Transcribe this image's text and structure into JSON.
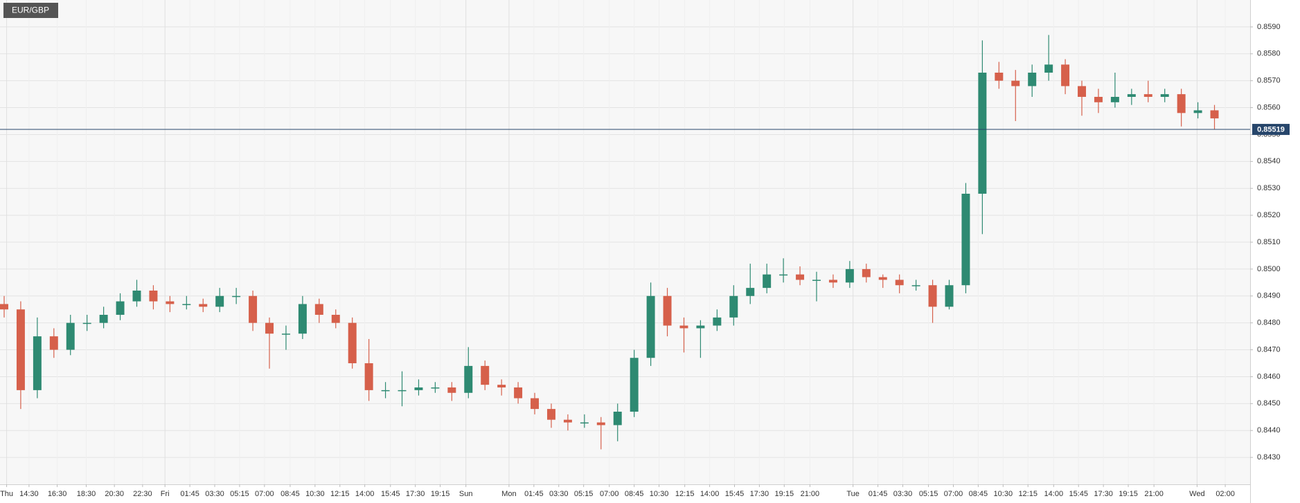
{
  "chart_data": {
    "type": "candlestick",
    "title": "EUR/GBP",
    "open": [
      0.8487,
      0.8485,
      0.8455,
      0.8475,
      0.847,
      0.848,
      0.848,
      0.8483,
      0.8488,
      0.8492,
      0.8488,
      0.8487,
      0.8487,
      0.8486,
      0.849,
      0.849,
      0.848,
      0.8476,
      0.8476,
      0.8487,
      0.8483,
      0.848,
      0.8465,
      0.8455,
      0.8455,
      0.8455,
      0.8456,
      0.8456,
      0.8454,
      0.8464,
      0.8457,
      0.8456,
      0.8452,
      0.8448,
      0.8444,
      0.8443,
      0.8443,
      0.8442,
      0.8447,
      0.8467,
      0.849,
      0.8479,
      0.8478,
      0.8479,
      0.8482,
      0.849,
      0.8493,
      0.8498,
      0.8498,
      0.8496,
      0.8496,
      0.8495,
      0.85,
      0.8497,
      0.8496,
      0.8494,
      0.8494,
      0.8486,
      0.8494,
      0.8528,
      0.8573,
      0.857,
      0.8568,
      0.8573,
      0.8576,
      0.8568,
      0.8564,
      0.8562,
      0.8564,
      0.8565,
      0.8564,
      0.8565,
      0.8558,
      0.8559
    ],
    "high": [
      0.849,
      0.8488,
      0.8482,
      0.8478,
      0.8483,
      0.8483,
      0.8486,
      0.8491,
      0.8496,
      0.8494,
      0.849,
      0.849,
      0.8489,
      0.8493,
      0.8493,
      0.8492,
      0.8482,
      0.8479,
      0.849,
      0.8489,
      0.8485,
      0.8482,
      0.8474,
      0.8458,
      0.8462,
      0.8459,
      0.8458,
      0.8458,
      0.8471,
      0.8466,
      0.8459,
      0.8458,
      0.8454,
      0.845,
      0.8446,
      0.8446,
      0.8445,
      0.845,
      0.847,
      0.8495,
      0.8493,
      0.8482,
      0.8481,
      0.8485,
      0.8494,
      0.8502,
      0.8502,
      0.8504,
      0.8501,
      0.8499,
      0.8498,
      0.8503,
      0.8502,
      0.8498,
      0.8498,
      0.8496,
      0.8496,
      0.8496,
      0.8532,
      0.8585,
      0.8577,
      0.8574,
      0.8576,
      0.8587,
      0.8578,
      0.857,
      0.8567,
      0.8573,
      0.8567,
      0.857,
      0.8567,
      0.8567,
      0.8562,
      0.8561
    ],
    "low": [
      0.8482,
      0.8448,
      0.8452,
      0.8467,
      0.8468,
      0.8477,
      0.8478,
      0.8481,
      0.8486,
      0.8485,
      0.8484,
      0.8485,
      0.8484,
      0.8484,
      0.8487,
      0.8477,
      0.8463,
      0.847,
      0.8474,
      0.848,
      0.8478,
      0.8463,
      0.8451,
      0.8452,
      0.8449,
      0.8453,
      0.8454,
      0.8451,
      0.8452,
      0.8455,
      0.8453,
      0.845,
      0.8446,
      0.8441,
      0.844,
      0.8441,
      0.8433,
      0.8436,
      0.8445,
      0.8464,
      0.8475,
      0.8469,
      0.8467,
      0.8477,
      0.8479,
      0.8487,
      0.8491,
      0.8495,
      0.8494,
      0.8488,
      0.8493,
      0.8493,
      0.8495,
      0.8493,
      0.8491,
      0.8492,
      0.848,
      0.8485,
      0.8491,
      0.8513,
      0.8567,
      0.8555,
      0.8564,
      0.857,
      0.8565,
      0.8557,
      0.8558,
      0.856,
      0.8561,
      0.8562,
      0.8562,
      0.8553,
      0.8556,
      0.8552
    ],
    "close": [
      0.8485,
      0.8455,
      0.8475,
      0.847,
      0.848,
      0.848,
      0.8483,
      0.8488,
      0.8492,
      0.8488,
      0.8487,
      0.8487,
      0.8486,
      0.849,
      0.849,
      0.848,
      0.8476,
      0.8476,
      0.8487,
      0.8483,
      0.848,
      0.8465,
      0.8455,
      0.8455,
      0.8455,
      0.8456,
      0.8456,
      0.8454,
      0.8464,
      0.8457,
      0.8456,
      0.8452,
      0.8448,
      0.8444,
      0.8443,
      0.8443,
      0.8442,
      0.8447,
      0.8467,
      0.849,
      0.8479,
      0.8478,
      0.8479,
      0.8482,
      0.849,
      0.8493,
      0.8498,
      0.8498,
      0.8496,
      0.8496,
      0.8495,
      0.85,
      0.8497,
      0.8496,
      0.8494,
      0.8494,
      0.8486,
      0.8494,
      0.8528,
      0.8573,
      0.857,
      0.8568,
      0.8573,
      0.8576,
      0.8568,
      0.8564,
      0.8562,
      0.8564,
      0.8565,
      0.8564,
      0.8565,
      0.8558,
      0.8559,
      0.8556
    ],
    "up_color": "#2e8a72",
    "down_color": "#d6604b",
    "last_price": 0.85519,
    "last_price_color": "#27466b",
    "ylim": [
      0.842,
      0.86
    ],
    "yticks": [
      {
        "value": 0.843,
        "label": "0.8430"
      },
      {
        "value": 0.844,
        "label": "0.8440"
      },
      {
        "value": 0.845,
        "label": "0.8450"
      },
      {
        "value": 0.846,
        "label": "0.8460"
      },
      {
        "value": 0.847,
        "label": "0.8470"
      },
      {
        "value": 0.848,
        "label": "0.8480"
      },
      {
        "value": 0.849,
        "label": "0.8490"
      },
      {
        "value": 0.85,
        "label": "0.8500"
      },
      {
        "value": 0.851,
        "label": "0.8510"
      },
      {
        "value": 0.852,
        "label": "0.8520"
      },
      {
        "value": 0.853,
        "label": "0.8530"
      },
      {
        "value": 0.854,
        "label": "0.8540"
      },
      {
        "value": 0.855,
        "label": "0.8550"
      },
      {
        "value": 0.856,
        "label": "0.8560"
      },
      {
        "value": 0.857,
        "label": "0.8570"
      },
      {
        "value": 0.858,
        "label": "0.8580"
      },
      {
        "value": 0.859,
        "label": "0.8590"
      }
    ],
    "xlim": [
      -0.25,
      75.15
    ],
    "xticks": [
      {
        "value": 0.15,
        "label": "Thu"
      },
      {
        "value": 1.5,
        "label": "14:30"
      },
      {
        "value": 3.2,
        "label": "16:30"
      },
      {
        "value": 4.95,
        "label": "18:30"
      },
      {
        "value": 6.65,
        "label": "20:30"
      },
      {
        "value": 8.35,
        "label": "22:30"
      },
      {
        "value": 9.7,
        "label": "Fri"
      },
      {
        "value": 11.2,
        "label": "01:45"
      },
      {
        "value": 12.7,
        "label": "03:30"
      },
      {
        "value": 14.2,
        "label": "05:15"
      },
      {
        "value": 15.7,
        "label": "07:00"
      },
      {
        "value": 17.25,
        "label": "08:45"
      },
      {
        "value": 18.75,
        "label": "10:30"
      },
      {
        "value": 20.25,
        "label": "12:15"
      },
      {
        "value": 21.75,
        "label": "14:00"
      },
      {
        "value": 23.3,
        "label": "15:45"
      },
      {
        "value": 24.8,
        "label": "17:30"
      },
      {
        "value": 26.3,
        "label": "19:15"
      },
      {
        "value": 27.85,
        "label": "Sun"
      },
      {
        "value": 30.45,
        "label": "Mon"
      },
      {
        "value": 31.95,
        "label": "01:45"
      },
      {
        "value": 33.45,
        "label": "03:30"
      },
      {
        "value": 34.95,
        "label": "05:15"
      },
      {
        "value": 36.5,
        "label": "07:00"
      },
      {
        "value": 38,
        "label": "08:45"
      },
      {
        "value": 39.5,
        "label": "10:30"
      },
      {
        "value": 41.05,
        "label": "12:15"
      },
      {
        "value": 42.55,
        "label": "14:00"
      },
      {
        "value": 44.05,
        "label": "15:45"
      },
      {
        "value": 45.55,
        "label": "17:30"
      },
      {
        "value": 47.05,
        "label": "19:15"
      },
      {
        "value": 48.6,
        "label": "21:00"
      },
      {
        "value": 51.2,
        "label": "Tue"
      },
      {
        "value": 52.7,
        "label": "01:45"
      },
      {
        "value": 54.2,
        "label": "03:30"
      },
      {
        "value": 55.75,
        "label": "05:15"
      },
      {
        "value": 57.25,
        "label": "07:00"
      },
      {
        "value": 58.75,
        "label": "08:45"
      },
      {
        "value": 60.25,
        "label": "10:30"
      },
      {
        "value": 61.75,
        "label": "12:15"
      },
      {
        "value": 63.3,
        "label": "14:00"
      },
      {
        "value": 64.8,
        "label": "15:45"
      },
      {
        "value": 66.3,
        "label": "17:30"
      },
      {
        "value": 67.8,
        "label": "19:15"
      },
      {
        "value": 69.35,
        "label": "21:00"
      },
      {
        "value": 71.95,
        "label": "Wed"
      },
      {
        "value": 73.65,
        "label": "02:00"
      }
    ],
    "grid": true
  }
}
